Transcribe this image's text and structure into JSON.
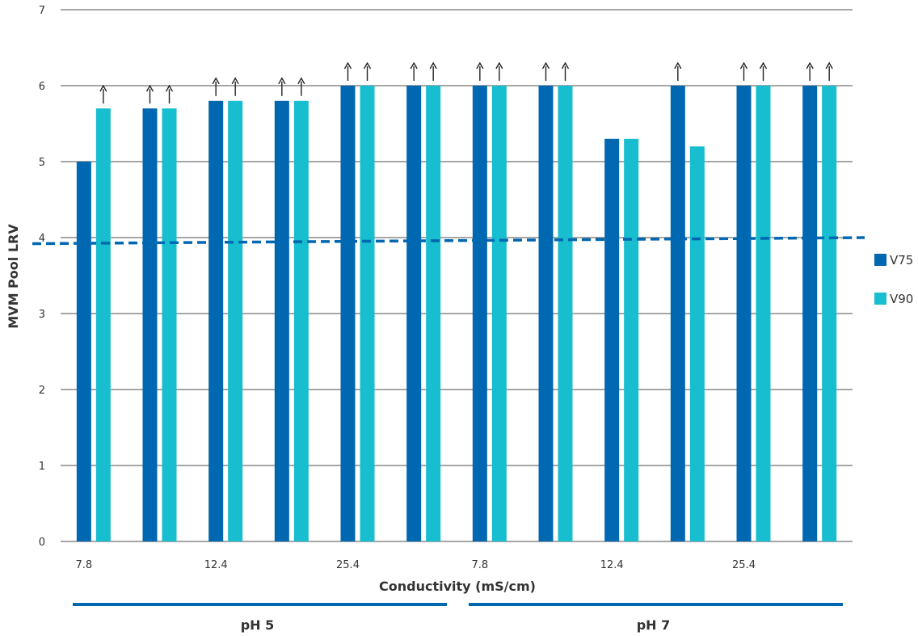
{
  "chart_data": {
    "type": "bar",
    "ylabel": "MVM Pool LRV",
    "xlabel": "Conductivity (mS/cm)",
    "ylim": [
      0,
      7
    ],
    "yticks": [
      0,
      1,
      2,
      3,
      4,
      5,
      6,
      7
    ],
    "grid": true,
    "legend_position": "right",
    "x_tick_labels": [
      {
        "label": "7.8",
        "group_index": 0
      },
      {
        "label": "12.4",
        "group_index": 2
      },
      {
        "label": "25.4",
        "group_index": 4
      },
      {
        "label": "7.8",
        "group_index": 6
      },
      {
        "label": "12.4",
        "group_index": 8
      },
      {
        "label": "25.4",
        "group_index": 10
      }
    ],
    "series": [
      {
        "name": "V75",
        "color": "#0067b1",
        "values": [
          5.0,
          5.7,
          5.8,
          5.8,
          6.0,
          6.0,
          6.0,
          6.0,
          5.3,
          6.0,
          6.0,
          6.0
        ],
        "greater_than": [
          false,
          true,
          true,
          true,
          true,
          true,
          true,
          true,
          false,
          true,
          true,
          true
        ]
      },
      {
        "name": "V90",
        "color": "#17becf",
        "values": [
          5.7,
          5.7,
          5.8,
          5.8,
          6.0,
          6.0,
          6.0,
          6.0,
          5.3,
          5.2,
          6.0,
          6.0
        ],
        "greater_than": [
          true,
          true,
          true,
          true,
          true,
          true,
          true,
          true,
          false,
          false,
          true,
          true
        ]
      }
    ],
    "reference_line": {
      "style": "dashed",
      "color": "#0067b1",
      "start": 3.92,
      "end": 4.0
    },
    "groups": [
      {
        "label": "pH 5",
        "from_index": 0,
        "to_index": 5
      },
      {
        "label": "pH 7",
        "from_index": 6,
        "to_index": 11
      }
    ]
  }
}
